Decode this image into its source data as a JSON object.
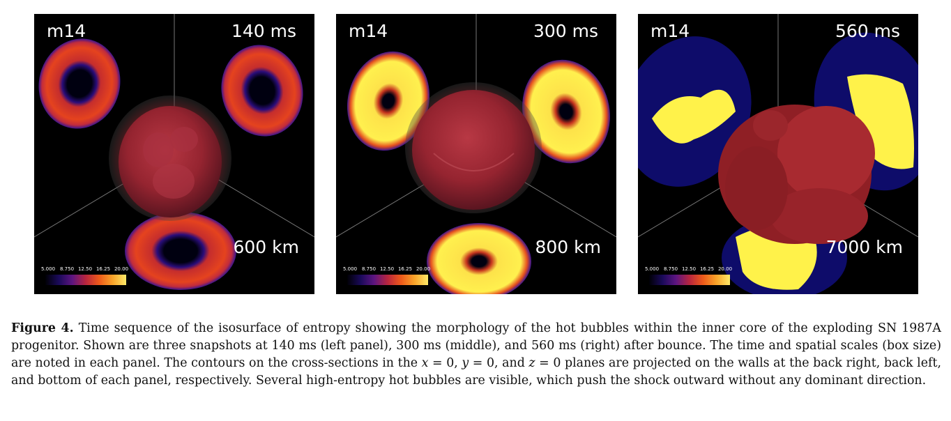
{
  "panels": [
    {
      "model": "m14",
      "time": "140 ms",
      "scale": "600 km",
      "colorbar_ticks": [
        "5.000",
        "8.750",
        "12.50",
        "16.25",
        "20.00"
      ]
    },
    {
      "model": "m14",
      "time": "300 ms",
      "scale": "800 km",
      "colorbar_ticks": [
        "5.000",
        "8.750",
        "12.50",
        "16.25",
        "20.00"
      ]
    },
    {
      "model": "m14",
      "time": "560 ms",
      "scale": "7000 km",
      "colorbar_ticks": [
        "5.000",
        "8.750",
        "12.50",
        "16.25",
        "20.00"
      ]
    }
  ],
  "colors": {
    "panel_background": "#000000",
    "isosurface": "#9a2530",
    "low_entropy": "#1a0a6a",
    "mid_entropy": "#e0401e",
    "high_entropy": "#fff24a"
  },
  "caption": {
    "label": "Figure 4.",
    "part1": " Time sequence of the isosurface of entropy showing the morphology of the hot bubbles within the inner core of the exploding SN 1987A progenitor. Shown are three snapshots at 140 ms (left panel), 300 ms (middle), and 560 ms (right) after bounce. The time and spatial scales (box size) are noted in each panel. The contours on the cross-sections in the ",
    "x_var": "x",
    "eq1": " = 0, ",
    "y_var": "y",
    "eq2": " = 0, and ",
    "z_var": "z",
    "part2": " = 0 planes are projected on the walls at the back right, back left, and bottom of each panel, respectively. Several high-entropy hot bubbles are visible, which push the shock outward without any dominant direction."
  }
}
